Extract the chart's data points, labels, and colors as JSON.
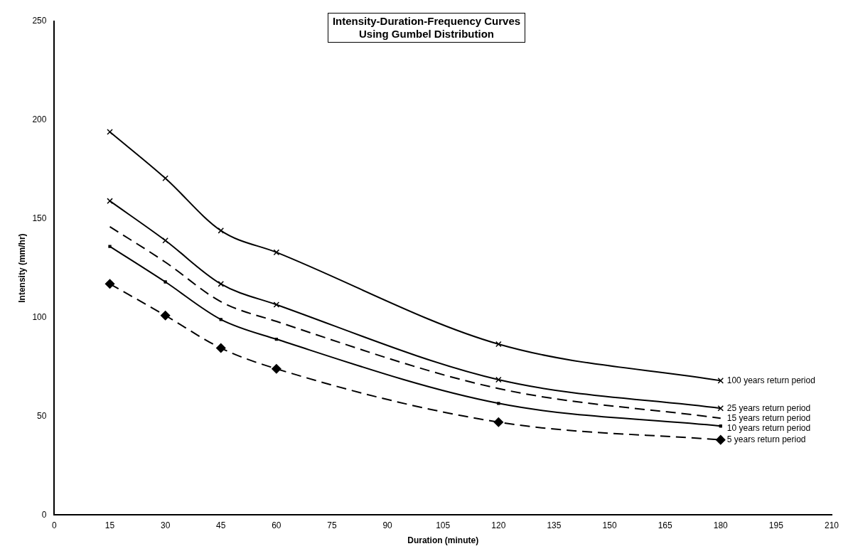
{
  "chart_data": {
    "type": "line",
    "title": "Intensity-Duration-Frequency Curves\nUsing Gumbel Distribution",
    "xlabel": "Duration (minute)",
    "ylabel": "Intensity (mm/hr)",
    "x": [
      15,
      30,
      45,
      60,
      120,
      180
    ],
    "series": [
      {
        "name": "100 years return period",
        "color": "#000000",
        "marker": "cross",
        "line_style": "solid",
        "values": [
          194,
          170.5,
          144,
          133,
          86.5,
          68
        ]
      },
      {
        "name": "25 years return period",
        "color": "#000000",
        "marker": "cross",
        "line_style": "solid",
        "values": [
          159,
          139,
          117,
          106.5,
          68.5,
          54
        ]
      },
      {
        "name": "15 years return period",
        "color": "#000000",
        "marker": "none",
        "line_style": "dashed",
        "values": [
          146,
          128,
          108,
          98,
          64,
          49
        ]
      },
      {
        "name": "10 years return period",
        "color": "#000000",
        "marker": "square",
        "line_style": "solid",
        "values": [
          136,
          118,
          99,
          89,
          56.5,
          45
        ]
      },
      {
        "name": "5 years return period",
        "color": "#000000",
        "marker": "diamond",
        "line_style": "dashed",
        "values": [
          117,
          101,
          84.5,
          74,
          47,
          38
        ]
      }
    ],
    "xlim": [
      0,
      210
    ],
    "xticks": [
      0,
      15,
      30,
      45,
      60,
      75,
      90,
      105,
      120,
      135,
      150,
      165,
      180,
      195,
      210
    ],
    "ylim": [
      0,
      250
    ],
    "yticks": [
      0,
      50,
      100,
      150,
      200,
      250
    ],
    "grid": false,
    "legend": false
  }
}
